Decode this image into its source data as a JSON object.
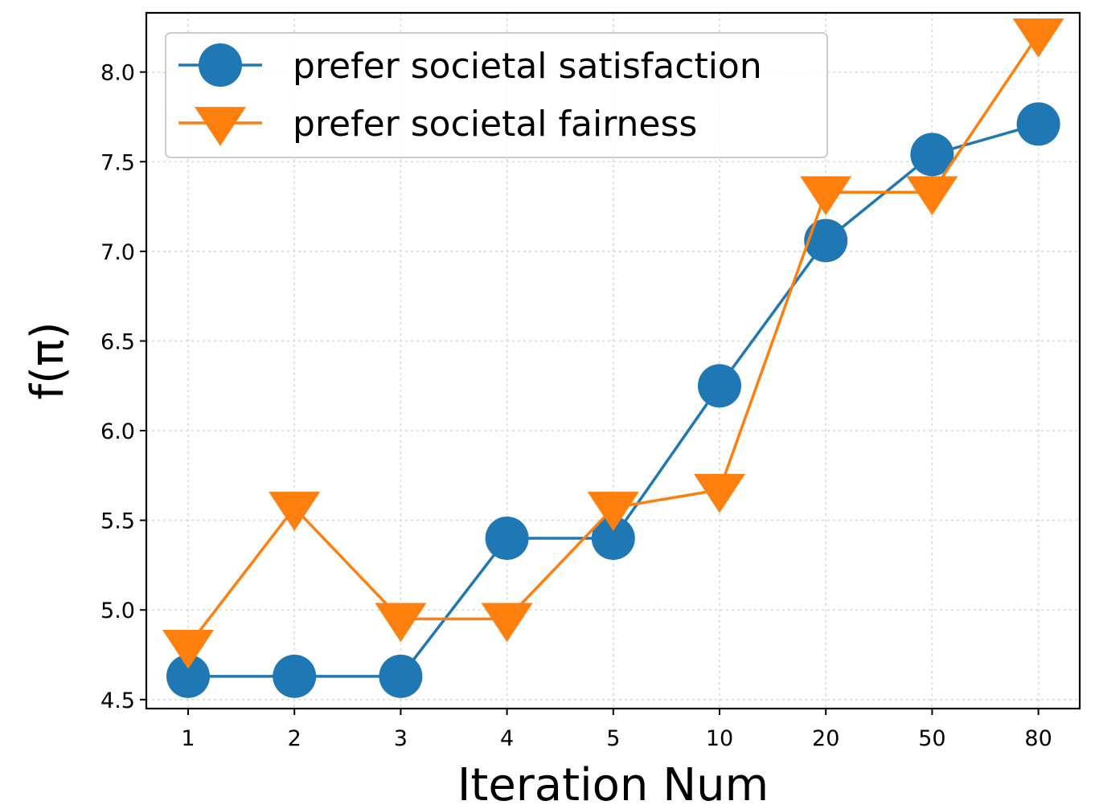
{
  "chart_data": {
    "type": "line",
    "title": "",
    "xlabel": "Iteration Num",
    "ylabel": "f(π)",
    "categories": [
      "1",
      "2",
      "3",
      "4",
      "5",
      "10",
      "20",
      "50",
      "80"
    ],
    "ylim": [
      4.45,
      8.33
    ],
    "yticks": [
      "4.5",
      "5.0",
      "5.5",
      "6.0",
      "6.5",
      "7.0",
      "7.5",
      "8.0"
    ],
    "grid": true,
    "legend_position": "top-left",
    "series": [
      {
        "name": "prefer societal satisfaction",
        "marker": "circle",
        "color": "#1f77b4",
        "values": [
          4.63,
          4.63,
          4.63,
          5.4,
          5.4,
          6.25,
          7.06,
          7.54,
          7.71
        ]
      },
      {
        "name": "prefer societal fairness",
        "marker": "triangle-down",
        "color": "#ff7f0e",
        "values": [
          4.8,
          5.57,
          4.95,
          4.95,
          5.57,
          5.67,
          7.33,
          7.33,
          8.21
        ]
      }
    ]
  }
}
